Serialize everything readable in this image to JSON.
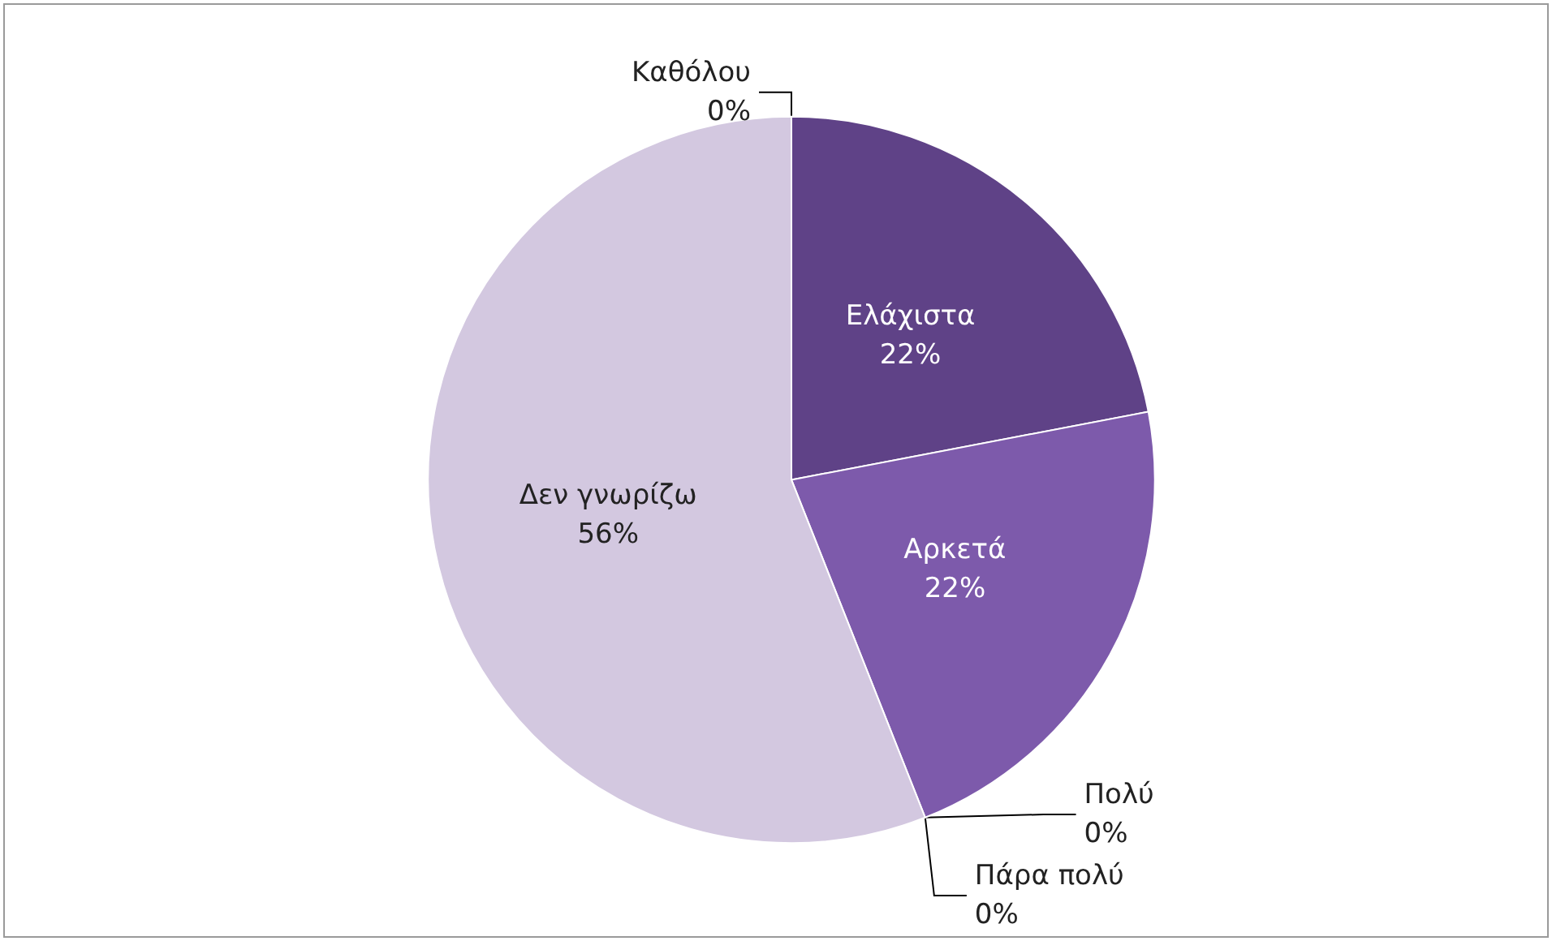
{
  "chart_data": {
    "type": "pie",
    "categories": [
      "Καθόλου",
      "Ελάχιστα",
      "Αρκετά",
      "Πολύ",
      "Πάρα πολύ",
      "Δεν γνωρίζω"
    ],
    "values": [
      0,
      22,
      22,
      0,
      0,
      56
    ],
    "value_labels": [
      "0%",
      "22%",
      "22%",
      "0%",
      "0%",
      "56%"
    ],
    "colors": [
      "#3f2a5c",
      "#5f4287",
      "#7d5aab",
      "#9b80c0",
      "#b7a3d2",
      "#d3c8e0"
    ]
  }
}
